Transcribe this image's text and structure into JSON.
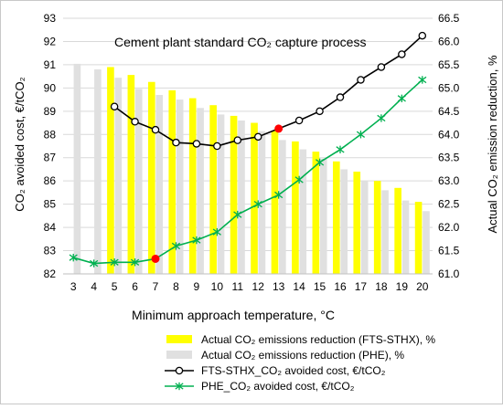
{
  "chart_data": {
    "type": "bar",
    "title": "Cement plant standard CO₂ capture process",
    "xlabel": "Minimum approach temperature, °C",
    "ylabel_left": "CO₂ avoided cost, €/tCO₂",
    "ylabel_right": "Actual CO₂ emission reduction, %",
    "x": [
      3,
      4,
      5,
      6,
      7,
      8,
      9,
      10,
      11,
      12,
      13,
      14,
      15,
      16,
      17,
      18,
      19,
      20
    ],
    "ylim_left": [
      82,
      93
    ],
    "yticks_left": [
      82,
      83,
      84,
      85,
      86,
      87,
      88,
      89,
      90,
      91,
      92,
      93
    ],
    "ylim_right": [
      61.0,
      66.5
    ],
    "yticks_right": [
      "61.0",
      "61.5",
      "62.0",
      "62.5",
      "63.0",
      "63.5",
      "64.0",
      "64.5",
      "65.0",
      "65.5",
      "66.0",
      "66.5"
    ],
    "grid": "horizontal",
    "legend_position": "bottom",
    "series": [
      {
        "name": "Actual CO₂ emissions reduction (FTS-STHX), %",
        "kind": "bar",
        "axis": "right",
        "color": "#ffff00",
        "values": [
          null,
          null,
          65.45,
          65.28,
          65.13,
          64.95,
          64.78,
          64.63,
          64.4,
          64.25,
          64.08,
          63.85,
          63.63,
          63.42,
          63.2,
          63.0,
          62.85,
          62.55
        ]
      },
      {
        "name": "Actual CO₂ emissions reduction (PHE), %",
        "kind": "bar",
        "axis": "right",
        "color": "#e0e0e0",
        "values": [
          65.52,
          65.4,
          65.22,
          64.98,
          64.85,
          64.75,
          64.57,
          64.43,
          64.3,
          64.07,
          63.88,
          63.68,
          63.48,
          63.25,
          63.0,
          62.8,
          62.58,
          62.35
        ]
      },
      {
        "name": "FTS-STHX_CO₂ avoided cost, €/tCO₂",
        "kind": "line",
        "axis": "left",
        "color": "#000000",
        "marker": "circle",
        "values": [
          null,
          null,
          89.2,
          88.55,
          88.2,
          87.65,
          87.6,
          87.5,
          87.75,
          87.9,
          88.25,
          88.6,
          89.0,
          89.6,
          90.35,
          90.9,
          91.45,
          92.25
        ],
        "highlight_index": 10
      },
      {
        "name": "PHE_CO₂ avoided cost, €/tCO₂",
        "kind": "line",
        "axis": "left",
        "color": "#00b050",
        "marker": "star",
        "values": [
          82.7,
          82.45,
          82.5,
          82.5,
          82.65,
          83.2,
          83.45,
          83.8,
          84.55,
          85.0,
          85.4,
          86.05,
          86.8,
          87.35,
          88.0,
          88.7,
          89.55,
          90.35
        ],
        "highlight_index": 4
      }
    ]
  }
}
